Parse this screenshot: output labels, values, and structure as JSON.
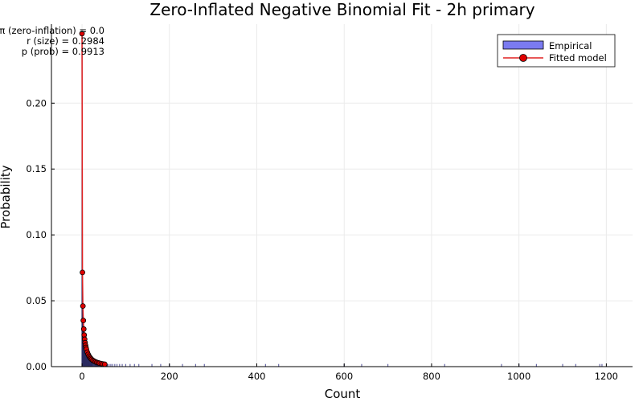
{
  "chart_data": {
    "type": "bar",
    "title": "Zero-Inflated Negative Binomial Fit - 2h primary",
    "xlabel": "Count",
    "ylabel": "Probability",
    "xlim": [
      -70,
      1260
    ],
    "ylim": [
      0,
      0.26
    ],
    "xticks": [
      0,
      200,
      400,
      600,
      800,
      1000,
      1200
    ],
    "xtick_labels": [
      "0",
      "200",
      "400",
      "600",
      "800",
      "1000",
      "1200"
    ],
    "yticks": [
      0,
      0.05,
      0.1,
      0.15,
      0.2
    ],
    "ytick_labels": [
      "0.00",
      "0.05",
      "0.10",
      "0.15",
      "0.20"
    ],
    "grid": true,
    "legend_position": "top-right",
    "annotations": [
      "π (zero-inflation) = 0.0",
      "r (size) = 0.2984",
      "p (prob) = 0.9913"
    ],
    "series": [
      {
        "name": "Empirical",
        "kind": "bar",
        "color": "#7b7bf0",
        "x": [
          0,
          1,
          2,
          3,
          4,
          5,
          6,
          7,
          8,
          9,
          10,
          11,
          12,
          13,
          14,
          15,
          16,
          17,
          18,
          19,
          20,
          22,
          24,
          26,
          28,
          30,
          32,
          34,
          36,
          38,
          40,
          43,
          46,
          50,
          54,
          58,
          62,
          66,
          70,
          75,
          80,
          86,
          92,
          100,
          110,
          120,
          130,
          160,
          180,
          200,
          230,
          260,
          280,
          420,
          450,
          600,
          640,
          700,
          830,
          960,
          1000,
          1040,
          1100,
          1130,
          1185,
          1190
        ],
        "values": [
          0.252,
          0.068,
          0.042,
          0.035,
          0.028,
          0.024,
          0.022,
          0.02,
          0.018,
          0.016,
          0.015,
          0.014,
          0.013,
          0.012,
          0.011,
          0.01,
          0.01,
          0.009,
          0.009,
          0.008,
          0.008,
          0.007,
          0.006,
          0.006,
          0.005,
          0.005,
          0.004,
          0.004,
          0.004,
          0.003,
          0.003,
          0.003,
          0.003,
          0.002,
          0.002,
          0.002,
          0.002,
          0.002,
          0.002,
          0.002,
          0.002,
          0.002,
          0.002,
          0.002,
          0.002,
          0.002,
          0.002,
          0.002,
          0.002,
          0.002,
          0.002,
          0.002,
          0.002,
          0.002,
          0.002,
          0.002,
          0.002,
          0.002,
          0.002,
          0.002,
          0.002,
          0.002,
          0.002,
          0.002,
          0.002,
          0.002
        ]
      },
      {
        "name": "Fitted model",
        "kind": "line-points",
        "color": "#e02020",
        "x": [
          0,
          1,
          2,
          3,
          4,
          5,
          6,
          7,
          8,
          9,
          10,
          12,
          14,
          16,
          18,
          20,
          22,
          25,
          28,
          31,
          34,
          37,
          40,
          44,
          48,
          52
        ],
        "values": [
          0.2528,
          0.0715,
          0.046,
          0.035,
          0.0285,
          0.024,
          0.0208,
          0.0182,
          0.0162,
          0.0146,
          0.0132,
          0.011,
          0.0093,
          0.008,
          0.007,
          0.0062,
          0.0055,
          0.0047,
          0.0041,
          0.0036,
          0.0032,
          0.0029,
          0.0026,
          0.0023,
          0.002,
          0.0018
        ]
      }
    ]
  }
}
